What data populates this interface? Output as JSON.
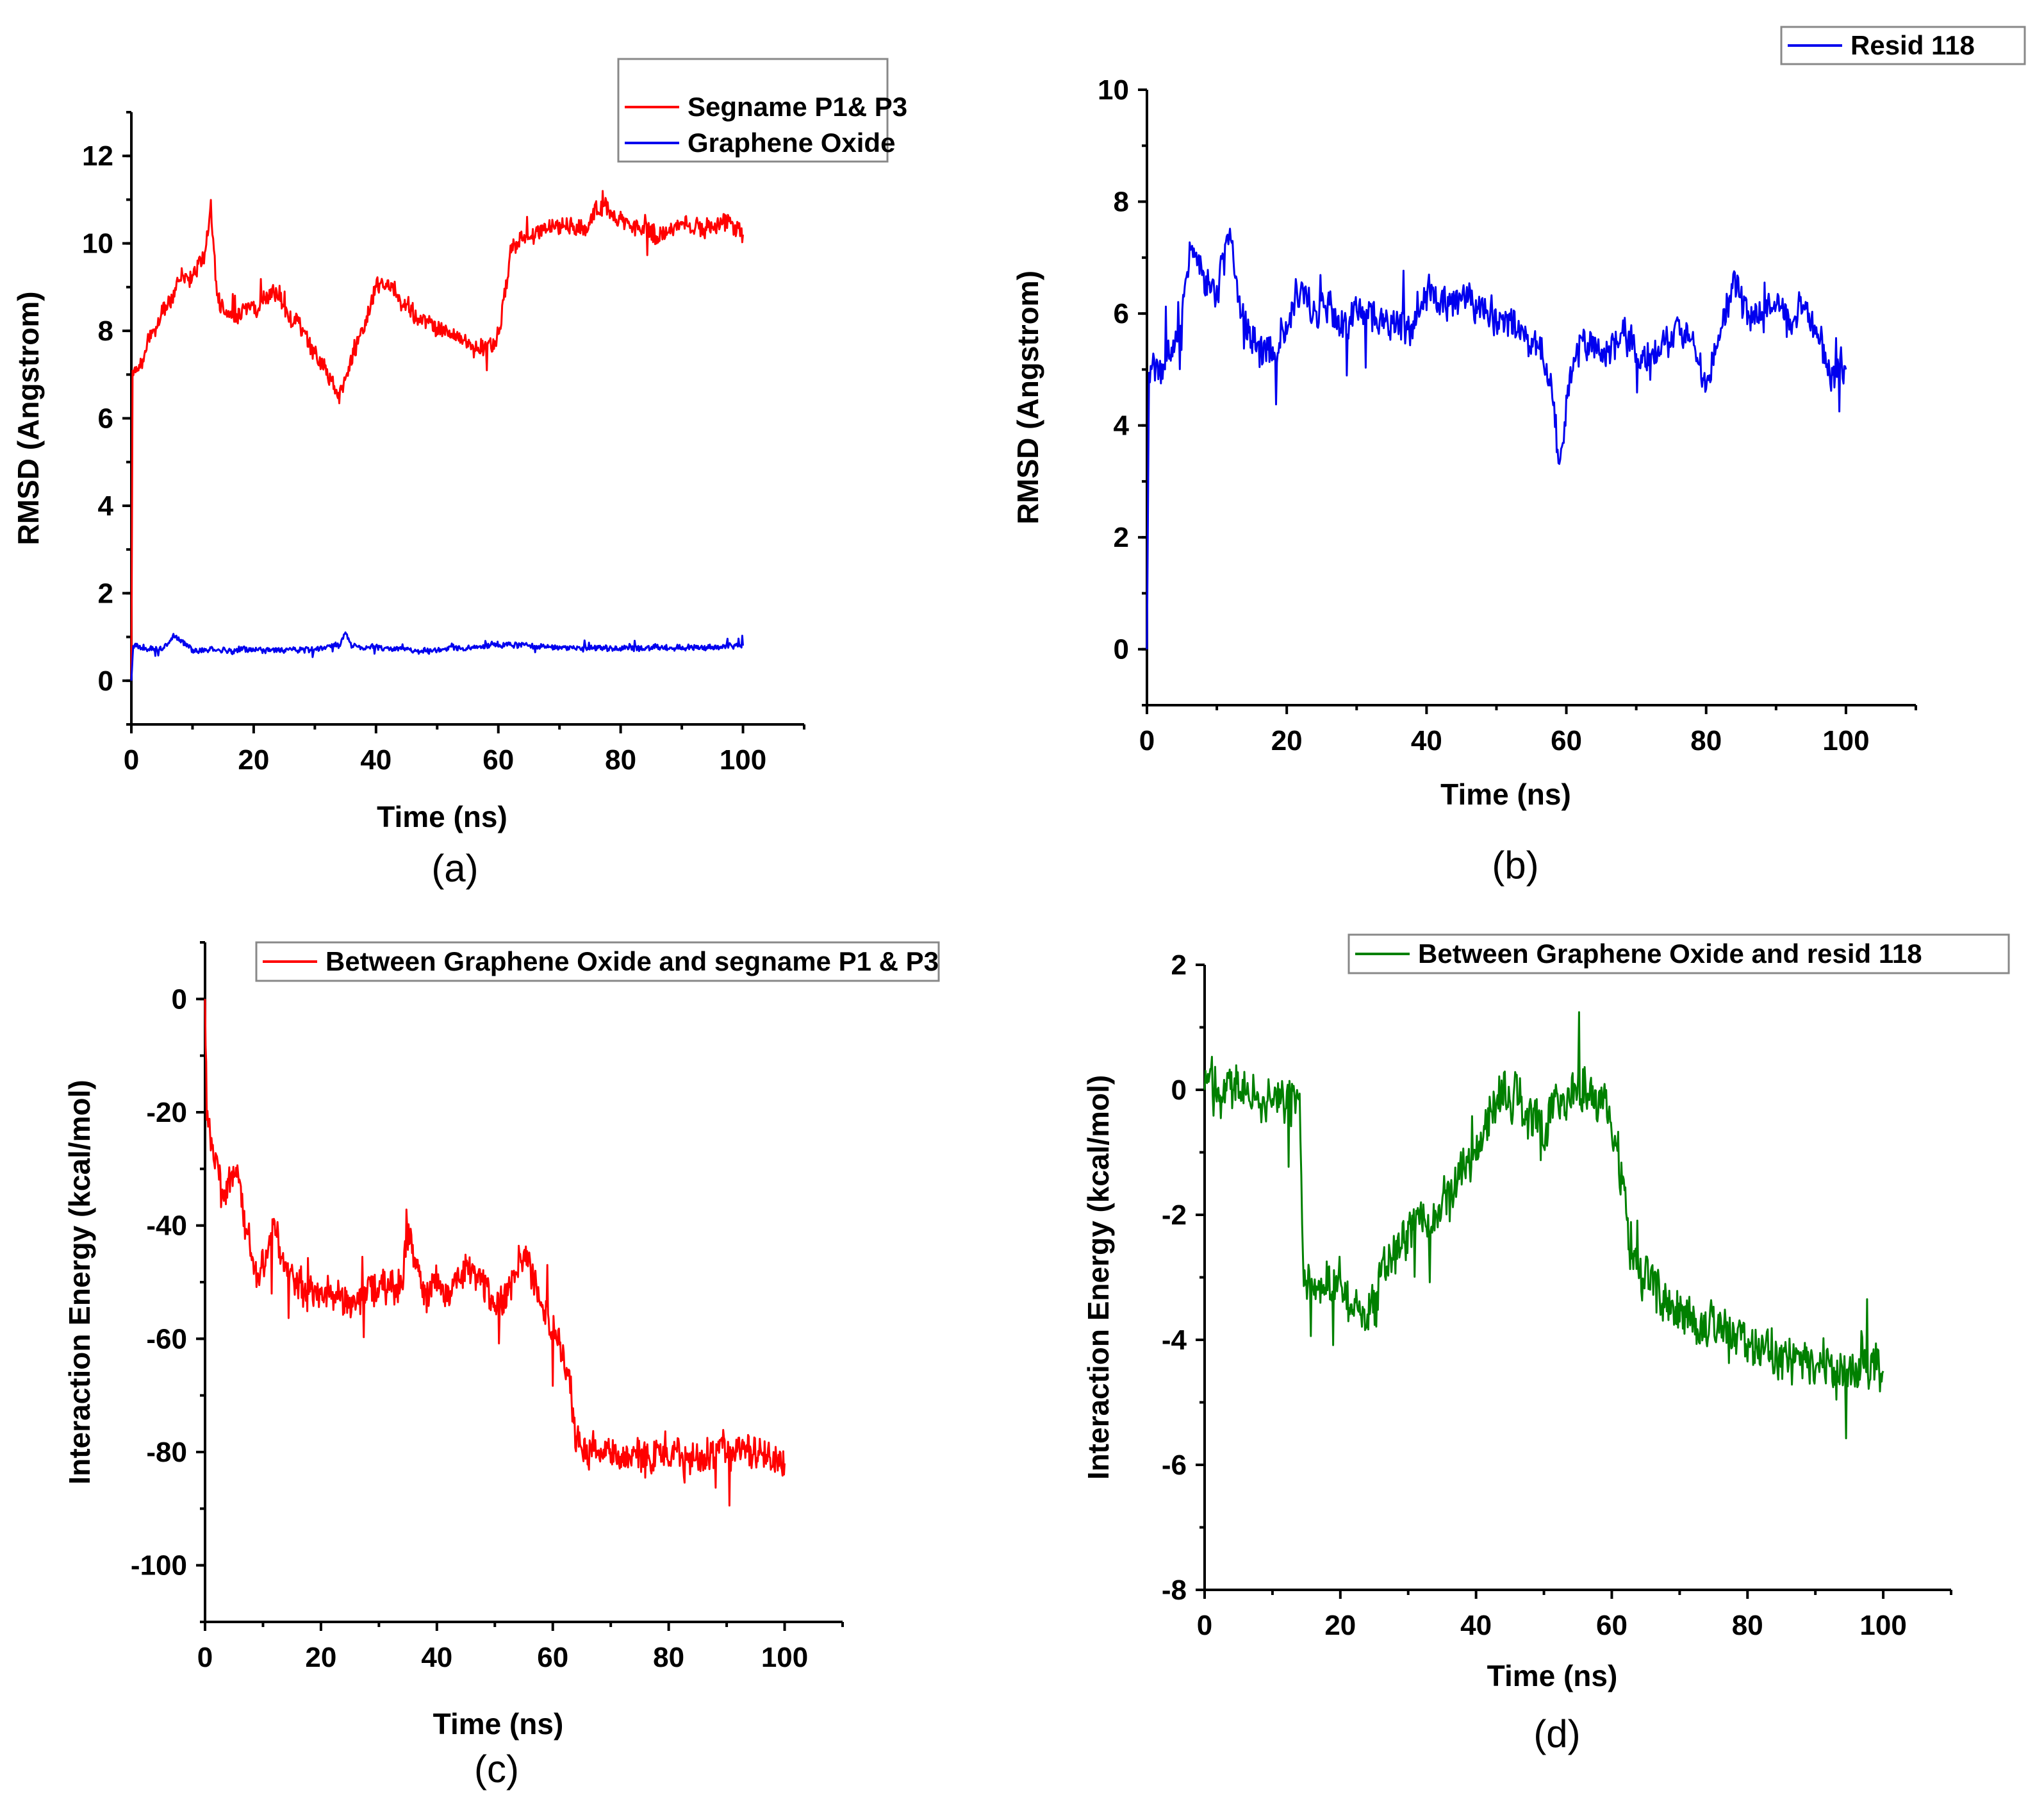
{
  "colors": {
    "red": "#ff0000",
    "blue": "#0000ee",
    "green": "#008000"
  },
  "chart_data": [
    {
      "type": "line",
      "caption": "(a)",
      "xlabel": "Time (ns)",
      "ylabel": "RMSD (Angstrom)",
      "xlim": [
        0,
        110
      ],
      "ylim": [
        -1,
        13
      ],
      "xticks": [
        0,
        20,
        40,
        60,
        80,
        100
      ],
      "xtick_labels": [
        "0",
        "20",
        "40",
        "60",
        "80",
        "100"
      ],
      "yticks": [
        0,
        2,
        4,
        6,
        8,
        10,
        12
      ],
      "ytick_labels": [
        "0",
        "2",
        "4",
        "6",
        "8",
        "10",
        "12"
      ],
      "legend_position": "top-right",
      "series": [
        {
          "name": "Segname P1& P3",
          "color": "#ff0000",
          "x": [
            0,
            0.2,
            2,
            5,
            8,
            10,
            12,
            13,
            14,
            16,
            18,
            20,
            22,
            24,
            26,
            28,
            30,
            32,
            34,
            36,
            38,
            40,
            42,
            44,
            46,
            48,
            50,
            52,
            54,
            56,
            58,
            60,
            61,
            62,
            64,
            66,
            68,
            70,
            72,
            74,
            76,
            78,
            80,
            82,
            84,
            86,
            88,
            90,
            92,
            94,
            96,
            98,
            100
          ],
          "y": [
            0,
            7,
            7.4,
            8.5,
            9.1,
            9.3,
            9.7,
            10.8,
            8.8,
            8.3,
            8.4,
            8.5,
            8.7,
            8.9,
            8.3,
            7.9,
            7.5,
            7.1,
            6.5,
            7.4,
            8.1,
            8.9,
            9.1,
            8.6,
            8.4,
            8.2,
            8.0,
            8.0,
            7.8,
            7.6,
            7.6,
            7.8,
            8.8,
            9.9,
            10.1,
            10.2,
            10.3,
            10.4,
            10.4,
            10.3,
            10.9,
            10.7,
            10.6,
            10.3,
            10.4,
            10.2,
            10.3,
            10.5,
            10.4,
            10.3,
            10.5,
            10.4,
            10.2
          ],
          "noise": 0.25
        },
        {
          "name": "Graphene Oxide",
          "color": "#0000ee",
          "x": [
            0,
            0.3,
            5,
            7,
            10,
            20,
            30,
            34,
            35,
            36,
            40,
            50,
            58,
            60,
            70,
            80,
            90,
            100
          ],
          "y": [
            0,
            0.8,
            0.7,
            1.0,
            0.7,
            0.7,
            0.7,
            0.8,
            1.1,
            0.8,
            0.75,
            0.7,
            0.8,
            0.85,
            0.75,
            0.75,
            0.75,
            0.8
          ],
          "noise": 0.08
        }
      ]
    },
    {
      "type": "line",
      "caption": "(b)",
      "xlabel": "Time (ns)",
      "ylabel": "RMSD (Angstrom)",
      "xlim": [
        0,
        110
      ],
      "ylim": [
        -1,
        10
      ],
      "xticks": [
        0,
        20,
        40,
        60,
        80,
        100
      ],
      "xtick_labels": [
        "0",
        "20",
        "40",
        "60",
        "80",
        "100"
      ],
      "yticks": [
        0,
        2,
        4,
        6,
        8,
        10
      ],
      "ytick_labels": [
        "0",
        "2",
        "4",
        "6",
        "8",
        "10"
      ],
      "legend_position": "top-right",
      "series": [
        {
          "name": "Resid 118",
          "color": "#0000ee",
          "x": [
            0,
            0.3,
            2,
            4,
            6,
            8,
            10,
            12,
            13,
            14,
            16,
            18,
            20,
            22,
            24,
            26,
            28,
            30,
            32,
            34,
            36,
            38,
            40,
            42,
            44,
            46,
            48,
            50,
            52,
            54,
            56,
            58,
            59,
            60,
            62,
            64,
            66,
            68,
            70,
            72,
            74,
            76,
            78,
            80,
            82,
            84,
            86,
            88,
            90,
            92,
            94,
            96,
            98,
            100
          ],
          "y": [
            0,
            4.8,
            5.0,
            5.4,
            6.9,
            6.8,
            6.4,
            7.6,
            6.2,
            5.8,
            5.2,
            5.4,
            5.8,
            6.5,
            5.9,
            6.1,
            5.8,
            6.0,
            6.0,
            5.8,
            5.9,
            5.6,
            6.4,
            6.2,
            6.3,
            6.3,
            6.0,
            5.9,
            5.9,
            5.6,
            5.3,
            4.7,
            3.3,
            4.3,
            5.5,
            5.3,
            5.3,
            5.7,
            5.3,
            5.1,
            5.5,
            5.7,
            5.3,
            4.8,
            5.7,
            6.6,
            5.9,
            6.0,
            6.1,
            5.9,
            6.1,
            5.5,
            4.9,
            5.0
          ],
          "noise": 0.35
        }
      ]
    },
    {
      "type": "line",
      "caption": "(c)",
      "xlabel": "Time (ns)",
      "ylabel": "Interaction Energy (kcal/mol)",
      "xlim": [
        0,
        110
      ],
      "ylim": [
        -110,
        10
      ],
      "xticks": [
        0,
        20,
        40,
        60,
        80,
        100
      ],
      "xtick_labels": [
        "0",
        "20",
        "40",
        "60",
        "80",
        "100"
      ],
      "yticks": [
        0,
        -20,
        -40,
        -60,
        -80,
        -100
      ],
      "ytick_labels": [
        "0",
        "-20",
        "-40",
        "-60",
        "-80",
        "-100"
      ],
      "legend_position": "top-right",
      "series": [
        {
          "name": "Between Graphene Oxide and segname  P1 & P3",
          "color": "#ff0000",
          "x": [
            0,
            0.3,
            1,
            3,
            5,
            7,
            9,
            11,
            12,
            13,
            15,
            18,
            20,
            25,
            30,
            34,
            35,
            38,
            40,
            42,
            44,
            46,
            48,
            50,
            52,
            54,
            55,
            57,
            58,
            60,
            62,
            63,
            64,
            66,
            70,
            75,
            80,
            85,
            90,
            95,
            100
          ],
          "y": [
            0,
            -20,
            -25,
            -35,
            -30,
            -40,
            -48,
            -45,
            -38,
            -45,
            -50,
            -52,
            -52,
            -53,
            -51,
            -50,
            -42,
            -52,
            -50,
            -52,
            -48,
            -48,
            -50,
            -55,
            -52,
            -47,
            -45,
            -50,
            -55,
            -58,
            -62,
            -68,
            -78,
            -80,
            -80,
            -80,
            -81,
            -81,
            -80,
            -80,
            -82
          ],
          "noise": 3.5
        }
      ]
    },
    {
      "type": "line",
      "caption": "(d)",
      "xlabel": "Time (ns)",
      "ylabel": "Interaction Energy (kcal/mol)",
      "xlim": [
        0,
        110
      ],
      "ylim": [
        -8,
        2
      ],
      "xticks": [
        0,
        20,
        40,
        60,
        80,
        100
      ],
      "xtick_labels": [
        "0",
        "20",
        "40",
        "60",
        "80",
        "100"
      ],
      "yticks": [
        2,
        0,
        -2,
        -4,
        -6,
        -8
      ],
      "ytick_labels": [
        "2",
        "0",
        "-2",
        "-4",
        "-6",
        "-8"
      ],
      "legend_position": "top-right",
      "series": [
        {
          "name": "Between Graphene Oxide and resid 118",
          "color": "#008000",
          "x": [
            0,
            8,
            10,
            12,
            13,
            14,
            14.5,
            16,
            18,
            20,
            22,
            24,
            26,
            28,
            30,
            32,
            34,
            36,
            38,
            40,
            42,
            44,
            46,
            48,
            50,
            52,
            54,
            56,
            58,
            60,
            62,
            64,
            66,
            68,
            70,
            75,
            80,
            85,
            90,
            95,
            100
          ],
          "y": [
            0,
            0,
            -0.1,
            -0.2,
            -0.3,
            -0.2,
            -3.0,
            -3.2,
            -3.2,
            -3.0,
            -3.5,
            -3.8,
            -3.0,
            -2.5,
            -2.3,
            -2.2,
            -2.0,
            -1.7,
            -1.2,
            -1.0,
            -0.6,
            -0.2,
            -0.15,
            -0.4,
            -0.6,
            -0.2,
            -0.1,
            -0.05,
            -0.1,
            -0.6,
            -1.8,
            -2.8,
            -3.0,
            -3.4,
            -3.5,
            -3.8,
            -4.0,
            -4.3,
            -4.3,
            -4.5,
            -4.5
          ],
          "noise": 0.45
        }
      ]
    }
  ]
}
